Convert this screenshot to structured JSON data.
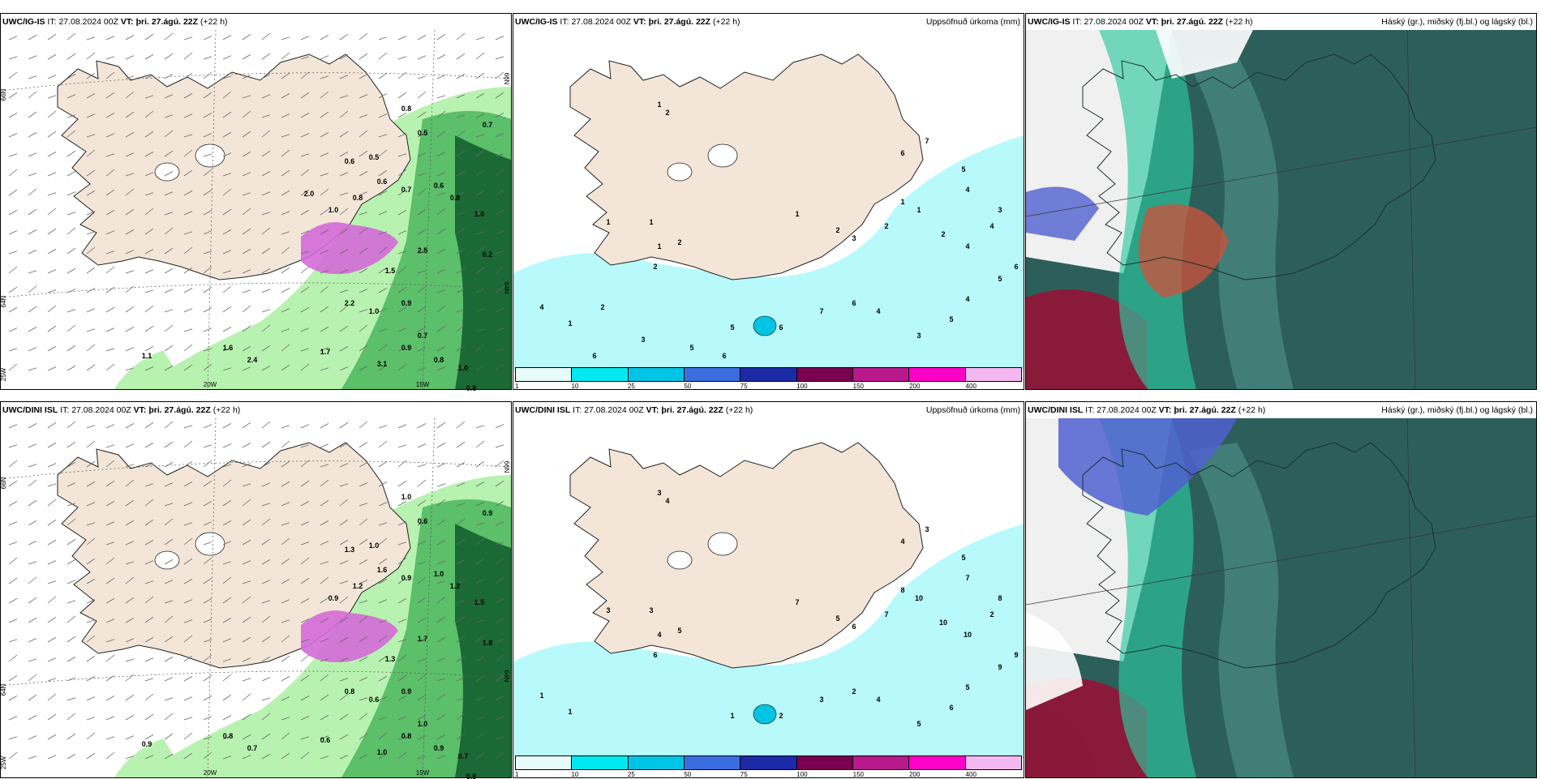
{
  "panels": [
    {
      "model": "UWC/IG-IS",
      "it_label": "IT:",
      "it_value": "27.08.2024 00Z",
      "vt_label": "VT:",
      "vt_value": "þri. 27.ágú. 22Z",
      "lead": "(+22 h)",
      "right_title": "",
      "lat_labels": [
        "66N",
        "66N",
        "64N",
        "64N"
      ],
      "lon_labels": [
        "25W",
        "20W",
        "15W"
      ],
      "values": [
        "0.8",
        "0.6",
        "0.5",
        "0.7",
        "0.6",
        "0.8",
        "1.0",
        "0.2",
        "2.5",
        "1.5",
        "0.9",
        "2.2",
        "1.0",
        "0.7",
        "0.8",
        "1.0",
        "0.8",
        "1.1",
        "1.6",
        "2.4",
        "1.7",
        "3.1",
        "0.9",
        "0.7",
        "0.5",
        "0.6",
        "0.8",
        "1.0",
        "2.0"
      ]
    },
    {
      "model": "UWC/IG-IS",
      "it_label": "IT:",
      "it_value": "27.08.2024 00Z",
      "vt_label": "VT:",
      "vt_value": "þri. 27.ágú. 22Z",
      "lead": "(+22 h)",
      "right_title": "Uppsöfnuð úrkoma (mm)",
      "values": [
        "1",
        "2",
        "1",
        "1",
        "1",
        "2",
        "2",
        "1",
        "2",
        "3",
        "2",
        "1",
        "1",
        "2",
        "4",
        "5",
        "6",
        "4",
        "5",
        "3",
        "4",
        "6",
        "5",
        "6",
        "7",
        "6",
        "7",
        "5",
        "4",
        "3",
        "4",
        "4",
        "1",
        "2",
        "3",
        "6",
        "5",
        "6"
      ]
    },
    {
      "model": "UWC/IG-IS",
      "it_label": "IT:",
      "it_value": "27.08.2024 00Z",
      "vt_label": "VT:",
      "vt_value": "þri. 27.ágú. 22Z",
      "lead": "(+22 h)",
      "right_title": "Háský (gr.), miðský (fj.bl.) og lágský (bl.)"
    },
    {
      "model": "UWC/DINI ISL",
      "it_label": "IT:",
      "it_value": "27.08.2024 00Z",
      "vt_label": "VT:",
      "vt_value": "þri. 27.ágú. 22Z",
      "lead": "(+22 h)",
      "right_title": "",
      "lat_labels": [
        "66N",
        "66N",
        "64N",
        "64N"
      ],
      "lon_labels": [
        "25W",
        "20W",
        "15W"
      ],
      "values": [
        "1.0",
        "1.3",
        "1.0",
        "0.9",
        "1.0",
        "1.2",
        "1.5",
        "1.8",
        "1.7",
        "1.3",
        "0.9",
        "0.8",
        "0.6",
        "1.0",
        "0.9",
        "0.7",
        "0.8",
        "0.9",
        "0.8",
        "0.7",
        "0.6",
        "1.0",
        "0.8",
        "0.9",
        "0.6",
        "1.6",
        "1.2",
        "0.9"
      ]
    },
    {
      "model": "UWC/DINI ISL",
      "it_label": "IT:",
      "it_value": "27.08.2024 00Z",
      "vt_label": "VT:",
      "vt_value": "þri. 27.ágú. 22Z",
      "lead": "(+22 h)",
      "right_title": "Uppsöfnuð úrkoma (mm)",
      "values": [
        "3",
        "4",
        "3",
        "3",
        "4",
        "5",
        "6",
        "7",
        "5",
        "6",
        "7",
        "8",
        "10",
        "10",
        "10",
        "9",
        "9",
        "5",
        "6",
        "5",
        "4",
        "2",
        "1",
        "2",
        "3",
        "4",
        "3",
        "5",
        "7",
        "8",
        "2",
        "1",
        "1"
      ]
    },
    {
      "model": "UWC/DINI ISL",
      "it_label": "IT:",
      "it_value": "27.08.2024 00Z",
      "vt_label": "VT:",
      "vt_value": "þri. 27.ágú. 22Z",
      "lead": "(+22 h)",
      "right_title": "Háský (gr.), miðský (fj.bl.) og lágský (bl.)"
    }
  ],
  "colorbar": {
    "colors": [
      "#e8fbfb",
      "#00e8f0",
      "#00c4e4",
      "#3a6ee0",
      "#1c2aa8",
      "#7a0050",
      "#b81a8c",
      "#ff00c8",
      "#f4b8f0"
    ],
    "ticks": [
      "1",
      "10",
      "25",
      "50",
      "75",
      "100",
      "150",
      "200",
      "400"
    ]
  },
  "colors": {
    "land": "#f3e6d8",
    "precip_light": "#b8f2b0",
    "precip_mid": "#5cbf6a",
    "precip_dark": "#1b6a35",
    "heavy": "#d46ad8",
    "accum_sea": "#b8fafc",
    "cloud_base": "#2d5f5a",
    "cloud_mid": "#4a8c84",
    "cloud_low": "#2dc8a0",
    "cloud_high_red": "#8a1a3a",
    "cloud_blue": "#5060d0"
  }
}
